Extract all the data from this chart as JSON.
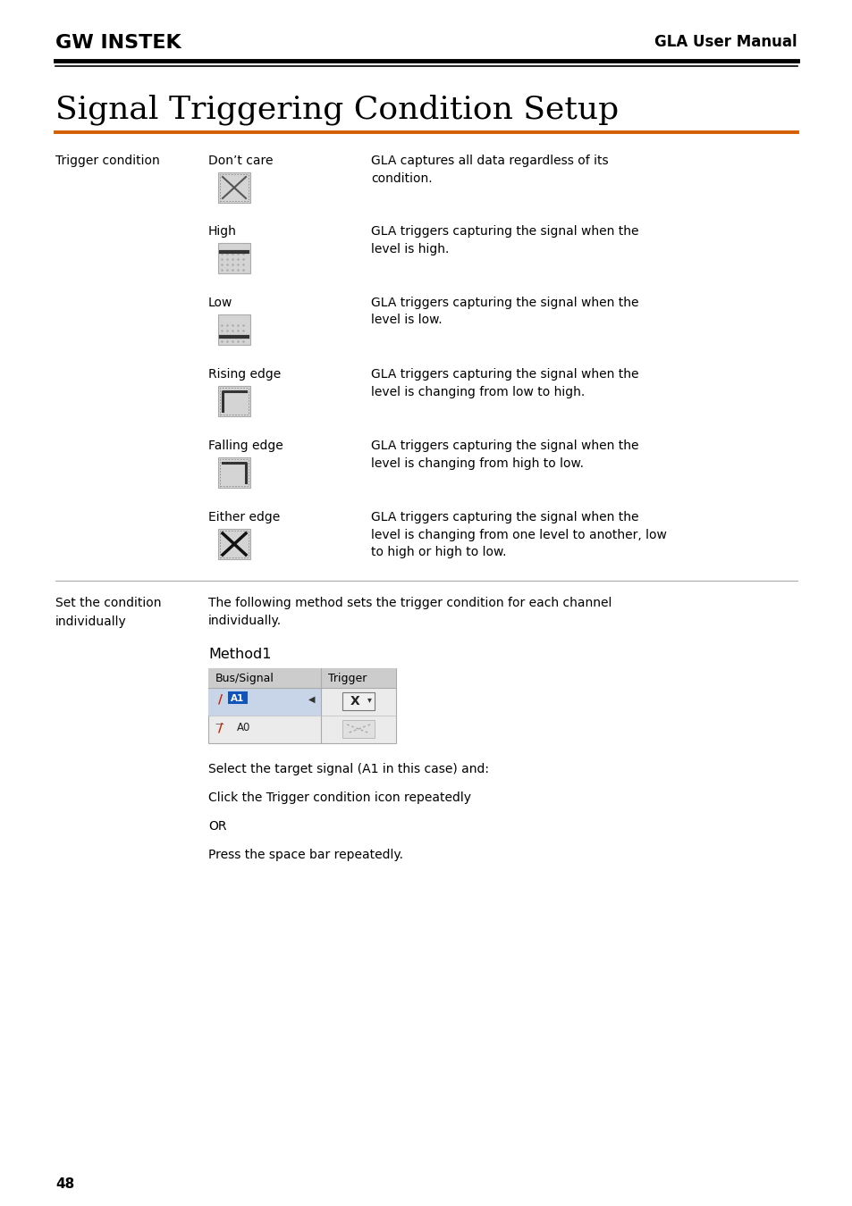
{
  "bg_color": "#ffffff",
  "header_text": "GLA User Manual",
  "title": "Signal Triggering Condition Setup",
  "orange_line_color": "#d45f00",
  "rows": [
    {
      "label": "Don’t care",
      "icon": "dont_care",
      "desc": "GLA captures all data regardless of its\ncondition."
    },
    {
      "label": "High",
      "icon": "high",
      "desc": "GLA triggers capturing the signal when the\nlevel is high."
    },
    {
      "label": "Low",
      "icon": "low",
      "desc": "GLA triggers capturing the signal when the\nlevel is low."
    },
    {
      "label": "Rising edge",
      "icon": "rising",
      "desc": "GLA triggers capturing the signal when the\nlevel is changing from low to high."
    },
    {
      "label": "Falling edge",
      "icon": "falling",
      "desc": "GLA triggers capturing the signal when the\nlevel is changing from high to low."
    },
    {
      "label": "Either edge",
      "icon": "either",
      "desc": "GLA triggers capturing the signal when the\nlevel is changing from one level to another, low\nto high or high to low."
    }
  ],
  "trigger_condition_label": "Trigger condition",
  "set_condition_label": "Set the condition\nindividually",
  "set_condition_text": "The following method sets the trigger condition for each channel\nindividually.",
  "method1_label": "Method1",
  "method1_desc1": "Select the target signal (A1 in this case) and:",
  "method1_desc2": "Click the Trigger condition icon repeatedly",
  "method1_or": "OR",
  "method1_desc3": "Press the space bar repeatedly.",
  "page_number": "48"
}
